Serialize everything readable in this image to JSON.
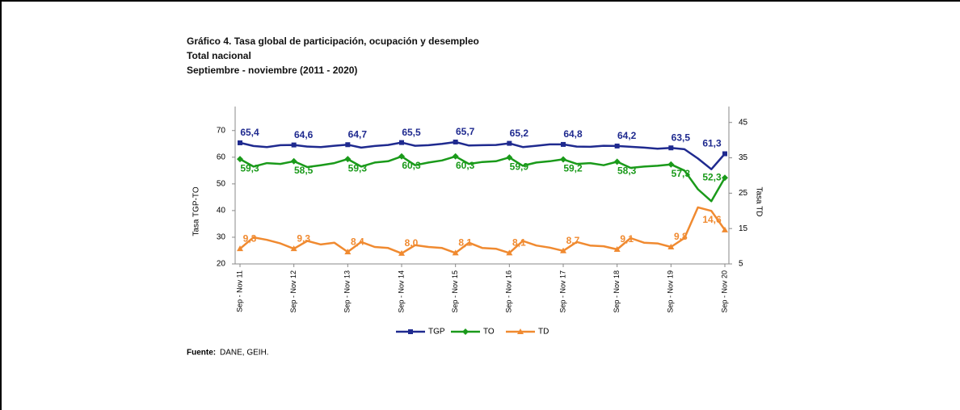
{
  "chart_data": {
    "type": "line",
    "title": "Gráfico 4. Tasa global de participación, ocupación y desempleo",
    "subtitle": "Total nacional",
    "period": "Septiembre - noviembre (2011 - 2020)",
    "ylabel": "Tasa TGP-TO",
    "y2label": "Tasa TD",
    "source_label": "Fuente:",
    "source_text": "DANE, GEIH.",
    "categories": [
      "Sep - Nov 11",
      null,
      null,
      null,
      "Sep - Nov 12",
      null,
      null,
      null,
      "Sep - Nov 13",
      null,
      null,
      null,
      "Sep - Nov 14",
      null,
      null,
      null,
      "Sep - Nov 15",
      null,
      null,
      null,
      "Sep - Nov 16",
      null,
      null,
      null,
      "Sep - Nov 17",
      null,
      null,
      null,
      "Sep - Nov 18",
      null,
      null,
      null,
      "Sep - Nov 19",
      null,
      null,
      null,
      "Sep - Nov 20"
    ],
    "ylim": [
      20,
      79
    ],
    "yticks": [
      20,
      30,
      40,
      50,
      60,
      70
    ],
    "y2lim": [
      5,
      49.5
    ],
    "y2ticks": [
      5,
      15,
      25,
      35,
      45
    ],
    "legend": "bottom",
    "series": [
      {
        "name": "TGP",
        "color": "#1f2a8f",
        "marker": "square",
        "values": [
          65.4,
          64.2,
          63.8,
          64.5,
          64.6,
          64.0,
          63.8,
          64.3,
          64.7,
          63.6,
          64.2,
          64.6,
          65.5,
          64.3,
          64.5,
          65.0,
          65.7,
          64.4,
          64.5,
          64.6,
          65.2,
          63.8,
          64.3,
          64.8,
          64.8,
          64.0,
          63.9,
          64.3,
          64.2,
          63.9,
          63.6,
          63.2,
          63.5,
          63.0,
          59.5,
          55.5,
          61.3
        ],
        "value_labels": [
          "65,4",
          null,
          null,
          null,
          "64,6",
          null,
          null,
          null,
          "64,7",
          null,
          null,
          null,
          "65,5",
          null,
          null,
          null,
          "65,7",
          null,
          null,
          null,
          "65,2",
          null,
          null,
          null,
          "64,8",
          null,
          null,
          null,
          "64,2",
          null,
          null,
          null,
          "63,5",
          null,
          null,
          null,
          "61,3"
        ]
      },
      {
        "name": "TO",
        "color": "#1a9a1a",
        "marker": "diamond",
        "values": [
          59.3,
          56.5,
          57.8,
          57.5,
          58.5,
          56.3,
          57.0,
          57.8,
          59.3,
          56.5,
          58.0,
          58.5,
          60.3,
          57.0,
          58.0,
          58.8,
          60.3,
          57.5,
          58.2,
          58.5,
          59.9,
          56.8,
          58.0,
          58.5,
          59.2,
          57.5,
          57.8,
          57.0,
          58.3,
          56.0,
          56.5,
          56.8,
          57.3,
          55.0,
          48.0,
          43.5,
          52.3
        ],
        "value_labels": [
          "59,3",
          null,
          null,
          null,
          "58,5",
          null,
          null,
          null,
          "59,3",
          null,
          null,
          null,
          "60,3",
          null,
          null,
          null,
          "60,3",
          null,
          null,
          null,
          "59,9",
          null,
          null,
          null,
          "59,2",
          null,
          null,
          null,
          "58,3",
          null,
          null,
          null,
          "57,3",
          null,
          null,
          null,
          "52,3"
        ]
      },
      {
        "name": "TD",
        "color": "#f08a30",
        "marker": "triangle",
        "axis": "y2",
        "values": [
          9.3,
          12.5,
          11.8,
          10.8,
          9.3,
          11.5,
          10.5,
          11.0,
          8.4,
          11.2,
          9.8,
          9.5,
          8.0,
          10.3,
          9.8,
          9.5,
          8.1,
          11.0,
          9.5,
          9.3,
          8.1,
          11.5,
          10.2,
          9.6,
          8.7,
          11.2,
          10.2,
          10.0,
          9.1,
          12.3,
          11.0,
          10.8,
          9.8,
          12.3,
          21.0,
          20.0,
          14.6
        ],
        "value_labels": [
          "9,3",
          null,
          null,
          null,
          "9,3",
          null,
          null,
          null,
          "8,4",
          null,
          null,
          null,
          "8,0",
          null,
          null,
          null,
          "8,1",
          null,
          null,
          null,
          "8,1",
          null,
          null,
          null,
          "8,7",
          null,
          null,
          null,
          "9,1",
          null,
          null,
          null,
          "9,8",
          null,
          null,
          null,
          "14,6"
        ]
      }
    ]
  }
}
